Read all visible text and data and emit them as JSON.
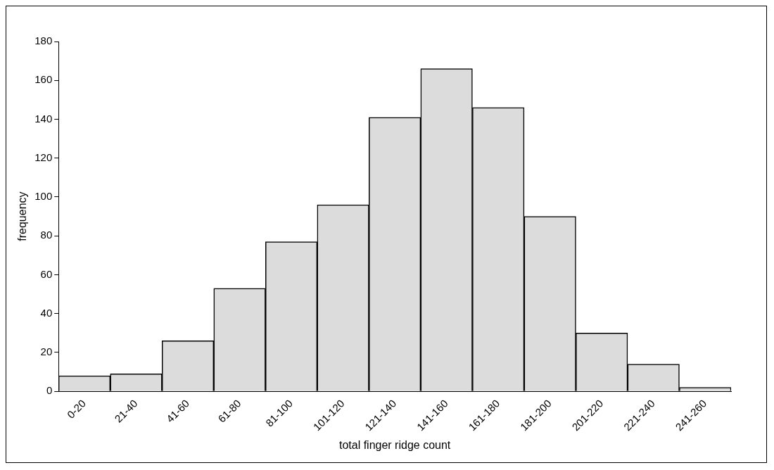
{
  "chart_data": {
    "type": "bar",
    "xlabel": "total finger ridge count",
    "ylabel": "frequency",
    "categories": [
      "0-20",
      "21-40",
      "41-60",
      "61-80",
      "81-100",
      "101-120",
      "121-140",
      "141-160",
      "161-180",
      "181-200",
      "201-220",
      "221-240",
      "241-260"
    ],
    "values": [
      8,
      9,
      26,
      53,
      77,
      96,
      141,
      166,
      146,
      90,
      30,
      14,
      2
    ],
    "color": "#dcdcdc",
    "ylim": [
      0,
      180
    ],
    "yticks": [
      0,
      20,
      40,
      60,
      80,
      100,
      120,
      140,
      160,
      180
    ],
    "grid": false,
    "legend": false
  }
}
